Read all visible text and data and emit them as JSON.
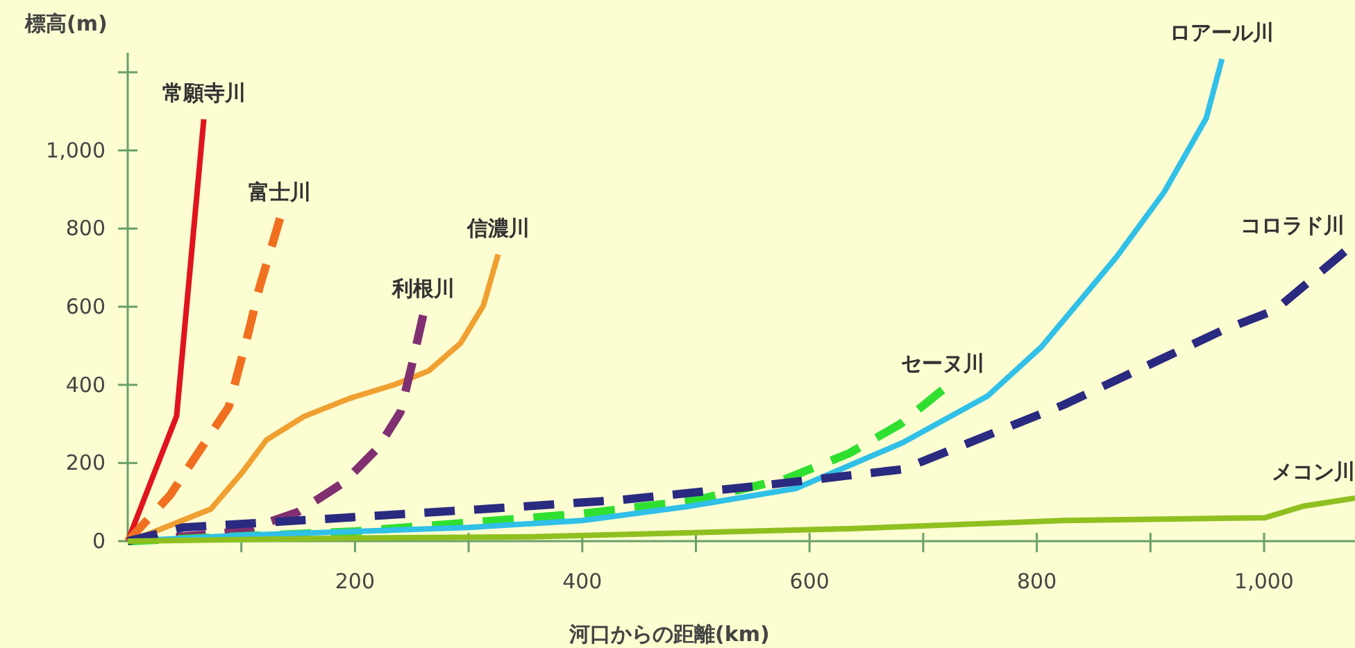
{
  "chart_data": {
    "type": "line",
    "xlabel": "河口からの距離(km)",
    "ylabel": "標高(m)",
    "xlim": [
      0,
      1080
    ],
    "ylim": [
      0,
      1250
    ],
    "xticks": [
      {
        "value": 100,
        "label": null
      },
      200,
      {
        "value": 300,
        "label": null
      },
      400,
      {
        "value": 500,
        "label": null
      },
      600,
      {
        "value": 700,
        "label": null
      },
      800,
      {
        "value": 900,
        "label": null
      },
      {
        "value": 1000,
        "label": "1,000"
      }
    ],
    "yticks": [
      0,
      200,
      400,
      600,
      800,
      {
        "value": 1000,
        "label": "1,000"
      },
      {
        "value": 1200,
        "label": null
      }
    ],
    "grid": false,
    "legend": false,
    "marker": "none",
    "series": [
      {
        "name": "常願寺川",
        "color": "#e0141e",
        "line_style": "solid",
        "x": [
          0,
          20,
          43,
          55,
          67
        ],
        "values": [
          0,
          150,
          320,
          700,
          1080
        ]
      },
      {
        "name": "富士川",
        "color": "#f07020",
        "line_style": "dashed",
        "x": [
          0,
          37,
          89,
          106,
          116,
          134
        ],
        "values": [
          0,
          117,
          344,
          532,
          649,
          826
        ]
      },
      {
        "name": "信濃川",
        "color": "#f0a030",
        "line_style": "solid",
        "x": [
          0,
          12,
          73,
          101,
          122,
          155,
          195,
          235,
          265,
          293,
          313,
          326
        ],
        "values": [
          0,
          11,
          82,
          177,
          259,
          319,
          365,
          401,
          436,
          507,
          603,
          734
        ]
      },
      {
        "name": "利根川",
        "color": "#803070",
        "line_style": "dashed",
        "x": [
          0,
          100,
          150,
          190,
          220,
          240,
          250,
          260
        ],
        "values": [
          0,
          25,
          75,
          150,
          238,
          330,
          450,
          578
        ]
      },
      {
        "name": "セーヌ川",
        "color": "#30e030",
        "line_style": "dashed",
        "x": [
          0,
          200,
          400,
          500,
          580,
          635,
          680,
          717
        ],
        "values": [
          0,
          25,
          70,
          105,
          160,
          225,
          300,
          387
        ]
      },
      {
        "name": "ロアール川",
        "color": "#30c0e8",
        "line_style": "solid",
        "x": [
          0,
          100,
          200,
          300,
          400,
          494,
          588,
          682,
          757,
          804,
          870,
          912,
          949,
          963
        ],
        "values": [
          0,
          15,
          25,
          35,
          53,
          89,
          135,
          252,
          372,
          497,
          727,
          893,
          1082,
          1234
        ]
      },
      {
        "name": "コロラド川",
        "color": "#2a2a80",
        "line_style": "dashed",
        "x": [
          0,
          49,
          191,
          313,
          435,
          557,
          682,
          823,
          963,
          1010,
          1071
        ],
        "values": [
          0,
          35,
          60,
          82,
          106,
          142,
          184,
          348,
          539,
          592,
          741
        ]
      },
      {
        "name": "メコン川",
        "color": "#90c020",
        "line_style": "solid",
        "x": [
          0,
          200,
          354,
          635,
          823,
          1001,
          1034,
          1080
        ],
        "values": [
          0,
          8,
          11,
          32,
          53,
          60,
          89,
          110
        ]
      }
    ]
  }
}
